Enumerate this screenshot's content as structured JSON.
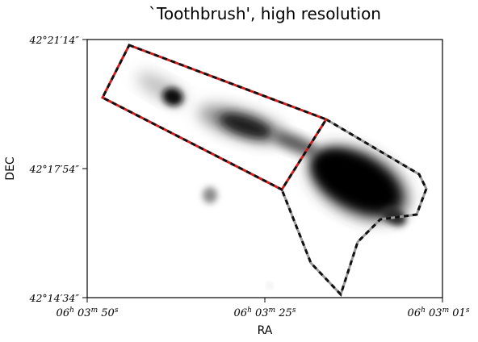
{
  "chart_data": {
    "type": "image",
    "title": "`Toothbrush', high resolution",
    "xlabel": "RA",
    "ylabel": "DEC",
    "x_ticks": [
      {
        "h": "06",
        "m": "03",
        "s": "50"
      },
      {
        "h": "06",
        "m": "03",
        "s": "25"
      },
      {
        "h": "06",
        "m": "03",
        "s": "01"
      }
    ],
    "y_ticks": [
      "42°21′14″",
      "42°17′54″",
      "42°14′34″"
    ],
    "regions": [
      {
        "name": "",
        "color": "#d11f1f",
        "style": "dashed"
      },
      {
        "name": "",
        "color": "#9a9a9a",
        "style": "dashed"
      }
    ]
  }
}
